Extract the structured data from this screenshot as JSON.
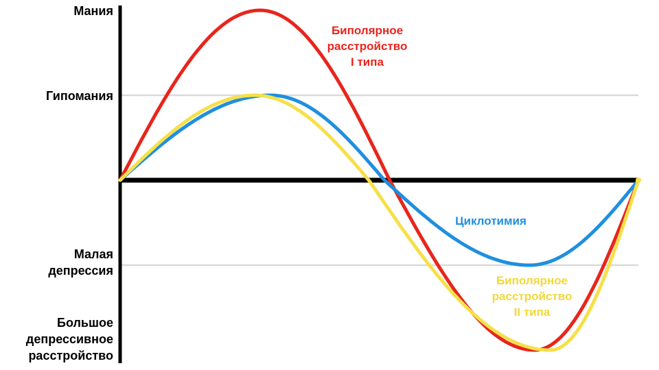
{
  "labels": {
    "mania": "Мания",
    "hypomania": "Гипомания",
    "minor_depression": "Малая\nдепрессия",
    "major_depression": "Большое\nдепрессивное\nрасстройство",
    "bipolar1": "Биполярное\nрасстройство\nI типа",
    "cyclothymia": "Циклотимия",
    "bipolar2": "Биполярное\nрасстройство\nII типа"
  },
  "colors": {
    "bipolar1": "#e8251c",
    "cyclothymia": "#1f8fdf",
    "bipolar2": "#f6e04a",
    "axis": "#000000",
    "gridline": "#d9d9d9",
    "background": "#ffffff"
  },
  "chart_data": {
    "type": "line",
    "title": "Mood amplitude curves of bipolar spectrum disorders",
    "xlabel": "",
    "ylabel": "",
    "x_axis": {
      "range": [
        0,
        1
      ],
      "ticks": []
    },
    "y_axis": {
      "levels": [
        {
          "value": 2,
          "label": "Мания",
          "gridline": false,
          "baseline": false
        },
        {
          "value": 1,
          "label": "Гипомания",
          "gridline": true,
          "baseline": false
        },
        {
          "value": 0,
          "label": "",
          "gridline": false,
          "baseline": true
        },
        {
          "value": -1,
          "label": "Малая депрессия",
          "gridline": true,
          "baseline": false
        },
        {
          "value": -2,
          "label": "Большое депрессивное расстройство",
          "gridline": false,
          "baseline": false
        }
      ]
    },
    "series": [
      {
        "name": "Биполярное расстройство I типа",
        "color": "#e8251c",
        "peak_level": 2,
        "trough_level": -2,
        "peak_x": 0.27,
        "zero_cross_x": 0.52,
        "trough_x": 0.8
      },
      {
        "name": "Циклотимия",
        "color": "#1f8fdf",
        "peak_level": 1,
        "trough_level": -1,
        "peak_x": 0.29,
        "zero_cross_x": 0.51,
        "trough_x": 0.79
      },
      {
        "name": "Биполярное расстройство II типа",
        "color": "#f6e04a",
        "peak_level": 1,
        "trough_level": -2,
        "peak_x": 0.26,
        "zero_cross_x": 0.48,
        "trough_x": 0.83
      }
    ],
    "legend": "inline-annotations"
  }
}
